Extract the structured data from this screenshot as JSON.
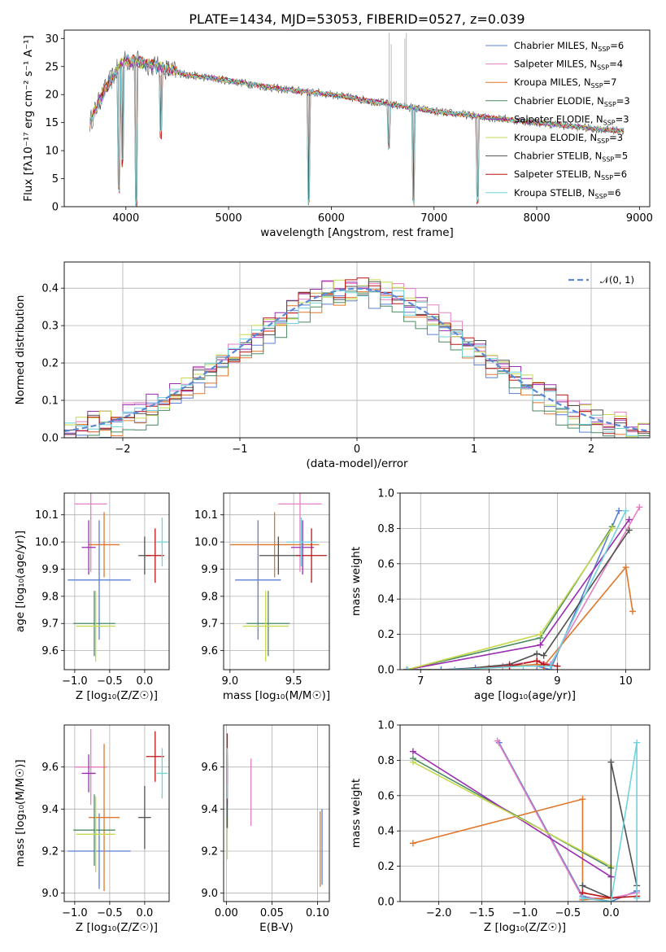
{
  "title": "PLATE=1434, MJD=53053, FIBERID=0527, z=0.039",
  "colors": [
    "#5b7fd6",
    "#e77fc3",
    "#e0772b",
    "#4a8a62",
    "#9b2bb1",
    "#c7d94e",
    "#505050",
    "#b81515",
    "#6fd3dc"
  ],
  "chart_data": [
    {
      "id": "spectrum",
      "type": "line",
      "xlabel": "wavelength [Angstrom, rest frame]",
      "ylabel": "Flux [fλ10⁻¹⁷ erg cm⁻² s⁻¹ A⁻¹]",
      "xlim": [
        3400,
        9100
      ],
      "ylim": [
        0,
        31.5
      ],
      "xticks": [
        4000,
        5000,
        6000,
        7000,
        8000,
        9000
      ],
      "yticks": [
        0,
        5,
        10,
        15,
        20,
        25,
        30
      ],
      "legend_position": "upper right",
      "legend": [
        {
          "label": "Chabrier MILES, N",
          "sub": "SSP",
          "suffix": "=6"
        },
        {
          "label": "Salpeter MILES, N",
          "sub": "SSP",
          "suffix": "=4"
        },
        {
          "label": "Kroupa MILES, N",
          "sub": "SSP",
          "suffix": "=7"
        },
        {
          "label": "Chabrier ELODIE, N",
          "sub": "SSP",
          "suffix": "=3"
        },
        {
          "label": "Salpeter ELODIE, N",
          "sub": "SSP",
          "suffix": "=3"
        },
        {
          "label": "Kroupa ELODIE, N",
          "sub": "SSP",
          "suffix": "=3"
        },
        {
          "label": "Chabrier STELIB, N",
          "sub": "SSP",
          "suffix": "=5"
        },
        {
          "label": "Salpeter STELIB, N",
          "sub": "SSP",
          "suffix": "=6"
        },
        {
          "label": "Kroupa STELIB, N",
          "sub": "SSP",
          "suffix": "=6"
        }
      ],
      "continuum": [
        [
          3650,
          15
        ],
        [
          3720,
          18
        ],
        [
          3800,
          21
        ],
        [
          3900,
          24
        ],
        [
          3980,
          26
        ],
        [
          4100,
          26
        ],
        [
          4300,
          25
        ],
        [
          4600,
          23.5
        ],
        [
          5000,
          22.5
        ],
        [
          5500,
          21
        ],
        [
          6000,
          20
        ],
        [
          6500,
          18.5
        ],
        [
          7000,
          17
        ],
        [
          7500,
          16
        ],
        [
          8000,
          15
        ],
        [
          8500,
          14
        ],
        [
          8850,
          13.5
        ]
      ],
      "absorption_lines": [
        [
          3933,
          2
        ],
        [
          3968,
          7
        ],
        [
          4101,
          0
        ],
        [
          4340,
          12
        ],
        [
          5780,
          0
        ],
        [
          6563,
          10
        ],
        [
          6800,
          0
        ],
        [
          7420,
          0
        ]
      ],
      "emission_spikes": [
        [
          6563,
          31
        ],
        [
          6583,
          29
        ],
        [
          6716,
          30
        ],
        [
          6731,
          31
        ]
      ]
    },
    {
      "id": "residuals",
      "type": "histogram",
      "xlabel": "(data-model)/error",
      "ylabel": "Normed distribution",
      "xlim": [
        -2.5,
        2.5
      ],
      "ylim": [
        0,
        0.47
      ],
      "xticks": [
        -2,
        -1,
        0,
        1,
        2
      ],
      "yticks": [
        0.0,
        0.1,
        0.2,
        0.3,
        0.4
      ],
      "reference_label": "𝒩(0, 1)",
      "bin_width": 0.1
    },
    {
      "id": "age_vs_Z",
      "type": "scatter_errorbar",
      "xlabel": "Z [log₁₀(Z/Z☉)]",
      "ylabel": "age  [log₁₀(age/yr)]",
      "xlim": [
        -1.15,
        0.35
      ],
      "ylim": [
        9.53,
        10.18
      ],
      "xticks": [
        -1.0,
        -0.5,
        0.0
      ],
      "yticks": [
        9.6,
        9.7,
        9.8,
        9.9,
        10.0,
        10.1
      ],
      "points": [
        {
          "x": -0.65,
          "xerr": 0.45,
          "y": 9.86,
          "yerr": 0.22
        },
        {
          "x": -0.77,
          "xerr": 0.23,
          "y": 10.14,
          "yerr": 0.25
        },
        {
          "x": -0.58,
          "xerr": 0.22,
          "y": 9.99,
          "yerr": 0.12
        },
        {
          "x": -0.72,
          "xerr": 0.3,
          "y": 9.7,
          "yerr": 0.12
        },
        {
          "x": -0.8,
          "xerr": 0.1,
          "y": 9.98,
          "yerr": 0.1
        },
        {
          "x": -0.7,
          "xerr": 0.28,
          "y": 9.69,
          "yerr": 0.13
        },
        {
          "x": 0.0,
          "xerr": 0.09,
          "y": 9.95,
          "yerr": 0.07
        },
        {
          "x": 0.15,
          "xerr": 0.13,
          "y": 9.95,
          "yerr": 0.1
        },
        {
          "x": 0.25,
          "xerr": 0.08,
          "y": 10.0,
          "yerr": 0.09
        }
      ]
    },
    {
      "id": "age_vs_mass",
      "type": "scatter_errorbar",
      "xlabel": "mass [log₁₀(M/M☉)]",
      "ylabel": "",
      "xlim": [
        8.95,
        9.78
      ],
      "ylim": [
        9.53,
        10.18
      ],
      "xticks": [
        9.0,
        9.5
      ],
      "yticks": [
        9.6,
        9.7,
        9.8,
        9.9,
        10.0,
        10.1
      ],
      "points": [
        {
          "x": 9.22,
          "xerr": 0.18,
          "y": 9.86,
          "yerr": 0.22
        },
        {
          "x": 9.55,
          "xerr": 0.17,
          "y": 10.14,
          "yerr": 0.25
        },
        {
          "x": 9.35,
          "xerr": 0.35,
          "y": 9.99,
          "yerr": 0.12
        },
        {
          "x": 9.3,
          "xerr": 0.17,
          "y": 9.7,
          "yerr": 0.12
        },
        {
          "x": 9.57,
          "xerr": 0.09,
          "y": 9.98,
          "yerr": 0.1
        },
        {
          "x": 9.28,
          "xerr": 0.18,
          "y": 9.69,
          "yerr": 0.13
        },
        {
          "x": 9.38,
          "xerr": 0.15,
          "y": 9.95,
          "yerr": 0.07
        },
        {
          "x": 9.64,
          "xerr": 0.12,
          "y": 9.95,
          "yerr": 0.1
        },
        {
          "x": 9.56,
          "xerr": 0.12,
          "y": 10.0,
          "yerr": 0.09
        }
      ]
    },
    {
      "id": "mass_weight_vs_age",
      "type": "line",
      "xlabel": "age  [log₁₀(age/yr)]",
      "ylabel": "mass weight",
      "xlim": [
        6.7,
        10.35
      ],
      "ylim": [
        0,
        1.0
      ],
      "xticks": [
        7,
        8,
        9,
        10
      ],
      "yticks": [
        0.0,
        0.2,
        0.4,
        0.6,
        0.8,
        1.0
      ],
      "series": [
        {
          "x": [
            6.8,
            7.3,
            7.8,
            8.3,
            8.7,
            8.9,
            9.9
          ],
          "y": [
            0.0,
            0.0,
            0.01,
            0.02,
            0.02,
            0.0,
            0.9
          ]
        },
        {
          "x": [
            6.8,
            7.5,
            8.2,
            8.7,
            8.9,
            10.2
          ],
          "y": [
            0.0,
            0.0,
            0.02,
            0.05,
            0.03,
            0.92
          ]
        },
        {
          "x": [
            6.8,
            7.5,
            8.0,
            8.7,
            8.8,
            10.0,
            10.1
          ],
          "y": [
            0.0,
            0.0,
            0.01,
            0.03,
            0.02,
            0.58,
            0.33
          ]
        },
        {
          "x": [
            6.8,
            8.75,
            9.8
          ],
          "y": [
            0.0,
            0.18,
            0.81
          ]
        },
        {
          "x": [
            6.8,
            8.75,
            10.05
          ],
          "y": [
            0.0,
            0.14,
            0.85
          ]
        },
        {
          "x": [
            6.8,
            8.75,
            9.8
          ],
          "y": [
            0.0,
            0.2,
            0.8
          ]
        },
        {
          "x": [
            6.8,
            7.5,
            8.3,
            8.7,
            8.8,
            10.05
          ],
          "y": [
            0.0,
            0.0,
            0.03,
            0.09,
            0.08,
            0.79
          ]
        },
        {
          "x": [
            6.8,
            7.5,
            8.3,
            8.7,
            8.8,
            9.0
          ],
          "y": [
            0.0,
            0.0,
            0.02,
            0.05,
            0.03,
            0.02
          ]
        },
        {
          "x": [
            6.8,
            7.5,
            8.5,
            8.9,
            10.0
          ],
          "y": [
            0.0,
            0.0,
            0.02,
            0.02,
            0.9
          ]
        }
      ]
    },
    {
      "id": "mass_vs_Z",
      "type": "scatter_errorbar",
      "xlabel": "Z [log₁₀(Z/Z☉)]",
      "ylabel": "mass [log₁₀(M/M☉)]",
      "xlim": [
        -1.15,
        0.35
      ],
      "ylim": [
        8.96,
        9.8
      ],
      "xticks": [
        -1.0,
        -0.5,
        0.0
      ],
      "yticks": [
        9.0,
        9.2,
        9.4,
        9.6
      ],
      "points": [
        {
          "x": -0.65,
          "xerr": 0.45,
          "y": 9.2,
          "yerr": 0.18
        },
        {
          "x": -0.77,
          "xerr": 0.23,
          "y": 9.6,
          "yerr": 0.18
        },
        {
          "x": -0.58,
          "xerr": 0.22,
          "y": 9.36,
          "yerr": 0.35
        },
        {
          "x": -0.72,
          "xerr": 0.3,
          "y": 9.3,
          "yerr": 0.17
        },
        {
          "x": -0.8,
          "xerr": 0.1,
          "y": 9.57,
          "yerr": 0.09
        },
        {
          "x": -0.7,
          "xerr": 0.28,
          "y": 9.28,
          "yerr": 0.18
        },
        {
          "x": 0.0,
          "xerr": 0.09,
          "y": 9.36,
          "yerr": 0.15
        },
        {
          "x": 0.15,
          "xerr": 0.13,
          "y": 9.65,
          "yerr": 0.12
        },
        {
          "x": 0.25,
          "xerr": 0.08,
          "y": 9.57,
          "yerr": 0.12
        }
      ]
    },
    {
      "id": "mass_vs_ebv",
      "type": "errorbar",
      "xlabel": "E(B-V)",
      "ylabel": "",
      "xlim": [
        -0.003,
        0.113
      ],
      "ylim": [
        8.96,
        9.8
      ],
      "xticks": [
        0.0,
        0.05,
        0.1
      ],
      "yticks": [
        9.0,
        9.2,
        9.4,
        9.6
      ],
      "points": [
        {
          "x": 0.105,
          "y": 9.22,
          "yerr": 0.18
        },
        {
          "x": 0.027,
          "y": 9.48,
          "yerr": 0.16
        },
        {
          "x": 0.103,
          "y": 9.21,
          "yerr": 0.18
        },
        {
          "x": 0.001,
          "y": 9.49,
          "yerr": 0.18
        },
        {
          "x": 0.001,
          "y": 9.52,
          "yerr": 0.1
        },
        {
          "x": 0.001,
          "y": 9.26,
          "yerr": 0.1
        },
        {
          "x": 0.001,
          "y": 9.48,
          "yerr": 0.17
        },
        {
          "x": 0.001,
          "y": 9.64,
          "yerr": 0.12
        },
        {
          "x": 0.001,
          "y": 9.57,
          "yerr": 0.12
        }
      ]
    },
    {
      "id": "mass_weight_vs_Z",
      "type": "line",
      "xlabel": "Z [log₁₀(Z/Z☉)]",
      "ylabel": "mass weight",
      "xlim": [
        -2.45,
        0.45
      ],
      "ylim": [
        0,
        1.0
      ],
      "xticks": [
        -2.0,
        -1.5,
        -1.0,
        -0.5,
        0.0
      ],
      "yticks": [
        0.0,
        0.2,
        0.4,
        0.6,
        0.8,
        1.0
      ],
      "series": [
        {
          "x": [
            -1.3,
            -0.33,
            0.0,
            0.3
          ],
          "y": [
            0.9,
            0.03,
            0.0,
            0.06
          ]
        },
        {
          "x": [
            -1.32,
            -0.33,
            0.0,
            0.3
          ],
          "y": [
            0.91,
            0.02,
            0.02,
            0.05
          ]
        },
        {
          "x": [
            -2.3,
            -0.33,
            -0.33,
            0.0
          ],
          "y": [
            0.33,
            0.58,
            0.01,
            0.02
          ]
        },
        {
          "x": [
            -2.3,
            0.0
          ],
          "y": [
            0.81,
            0.19
          ]
        },
        {
          "x": [
            -2.3,
            0.0
          ],
          "y": [
            0.85,
            0.14
          ]
        },
        {
          "x": [
            -2.3,
            0.0
          ],
          "y": [
            0.79,
            0.2
          ]
        },
        {
          "x": [
            -0.33,
            0.0,
            0.0,
            0.3
          ],
          "y": [
            0.09,
            0.02,
            0.79,
            0.09
          ]
        },
        {
          "x": [
            -0.33,
            0.0,
            0.3
          ],
          "y": [
            0.05,
            0.02,
            0.03
          ]
        },
        {
          "x": [
            -0.33,
            0.0,
            0.3,
            0.3
          ],
          "y": [
            0.02,
            0.0,
            0.9,
            0.02
          ]
        }
      ]
    }
  ]
}
